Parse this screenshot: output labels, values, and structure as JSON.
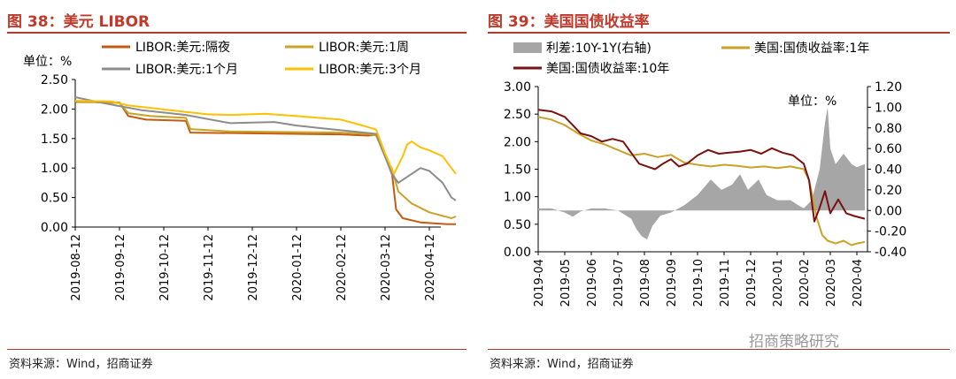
{
  "panels": [
    {
      "title": "图 38：美元 LIBOR",
      "source": "资料来源：Wind，招商证券"
    },
    {
      "title": "图 39：美国国债收益率",
      "source": "资料来源：Wind，招商证券"
    }
  ],
  "watermark": "招商策略研究",
  "chart_data": [
    {
      "type": "line",
      "unit_label": "单位：%",
      "ylim": [
        0,
        2.5
      ],
      "yticks": [
        "0.00",
        "0.50",
        "1.00",
        "1.50",
        "2.00",
        "2.50"
      ],
      "xticks": [
        "2019-08-12",
        "2019-09-12",
        "2019-10-12",
        "2019-11-12",
        "2019-12-12",
        "2020-01-12",
        "2020-02-12",
        "2020-03-12",
        "2020-04-12"
      ],
      "legend": "top",
      "series": [
        {
          "name": "LIBOR:美元:隔夜",
          "color": "#c55a11",
          "points": [
            [
              0,
              2.12
            ],
            [
              1,
              2.11
            ],
            [
              1.2,
              1.88
            ],
            [
              1.6,
              1.82
            ],
            [
              2.5,
              1.8
            ],
            [
              2.6,
              1.6
            ],
            [
              6,
              1.57
            ],
            [
              6.6,
              1.55
            ],
            [
              6.8,
              1.56
            ],
            [
              7.05,
              1.1
            ],
            [
              7.15,
              0.95
            ],
            [
              7.25,
              0.3
            ],
            [
              7.4,
              0.15
            ],
            [
              7.8,
              0.08
            ],
            [
              8.4,
              0.05
            ],
            [
              8.6,
              0.05
            ]
          ]
        },
        {
          "name": "LIBOR:美元:1周",
          "color": "#c9a227",
          "points": [
            [
              0,
              2.13
            ],
            [
              1,
              2.1
            ],
            [
              1.2,
              1.93
            ],
            [
              1.7,
              1.88
            ],
            [
              2.5,
              1.85
            ],
            [
              2.6,
              1.66
            ],
            [
              3.5,
              1.62
            ],
            [
              6,
              1.6
            ],
            [
              6.6,
              1.58
            ],
            [
              6.8,
              1.55
            ],
            [
              7.0,
              1.2
            ],
            [
              7.15,
              1.0
            ],
            [
              7.3,
              0.6
            ],
            [
              7.6,
              0.4
            ],
            [
              8.0,
              0.25
            ],
            [
              8.5,
              0.15
            ],
            [
              8.6,
              0.18
            ]
          ]
        },
        {
          "name": "LIBOR:美元:1个月",
          "color": "#8c8c8c",
          "points": [
            [
              0,
              2.2
            ],
            [
              0.5,
              2.12
            ],
            [
              1,
              2.05
            ],
            [
              1.5,
              1.98
            ],
            [
              2.5,
              1.9
            ],
            [
              3.5,
              1.76
            ],
            [
              4.5,
              1.78
            ],
            [
              5,
              1.72
            ],
            [
              6,
              1.64
            ],
            [
              6.8,
              1.58
            ],
            [
              7.0,
              1.2
            ],
            [
              7.15,
              0.9
            ],
            [
              7.3,
              0.75
            ],
            [
              7.5,
              0.85
            ],
            [
              7.8,
              1.0
            ],
            [
              8.0,
              0.95
            ],
            [
              8.3,
              0.75
            ],
            [
              8.5,
              0.5
            ],
            [
              8.6,
              0.45
            ]
          ]
        },
        {
          "name": "LIBOR:美元:3个月",
          "color": "#ffc000",
          "points": [
            [
              0,
              2.14
            ],
            [
              0.8,
              2.13
            ],
            [
              1.2,
              2.06
            ],
            [
              1.7,
              2.02
            ],
            [
              2.5,
              1.95
            ],
            [
              3,
              1.91
            ],
            [
              3.5,
              1.9
            ],
            [
              4.3,
              1.92
            ],
            [
              5,
              1.88
            ],
            [
              5.5,
              1.85
            ],
            [
              6,
              1.82
            ],
            [
              6.5,
              1.72
            ],
            [
              6.8,
              1.65
            ],
            [
              7.0,
              1.25
            ],
            [
              7.2,
              0.9
            ],
            [
              7.4,
              1.2
            ],
            [
              7.5,
              1.4
            ],
            [
              7.6,
              1.45
            ],
            [
              7.8,
              1.35
            ],
            [
              8.0,
              1.3
            ],
            [
              8.3,
              1.2
            ],
            [
              8.5,
              1.0
            ],
            [
              8.6,
              0.9
            ]
          ]
        }
      ]
    },
    {
      "type": "line",
      "unit_label": "单位：%",
      "ylim": [
        0,
        3
      ],
      "yticks": [
        "0.00",
        "0.50",
        "1.00",
        "1.50",
        "2.00",
        "2.50",
        "3.00"
      ],
      "y2lim": [
        -0.4,
        1.2
      ],
      "y2ticks": [
        "-0.40",
        "-0.20",
        "0.00",
        "0.20",
        "0.40",
        "0.60",
        "0.80",
        "1.00",
        "1.20"
      ],
      "xticks": [
        "2019-04",
        "2019-05",
        "2019-06",
        "2019-07",
        "2019-08",
        "2019-09",
        "2019-10",
        "2019-11",
        "2019-12",
        "2020-01",
        "2020-02",
        "2020-03",
        "2020-04"
      ],
      "legend": "top",
      "series": [
        {
          "name": "利差:10Y-1Y(右轴)",
          "type": "area",
          "axis": "right",
          "color": "#a6a6a6",
          "points": [
            [
              0,
              0.02
            ],
            [
              0.5,
              0.02
            ],
            [
              1.0,
              -0.02
            ],
            [
              1.3,
              -0.06
            ],
            [
              1.6,
              -0.01
            ],
            [
              2,
              0.02
            ],
            [
              2.5,
              0.02
            ],
            [
              3.0,
              0.0
            ],
            [
              3.5,
              -0.08
            ],
            [
              3.7,
              -0.18
            ],
            [
              3.9,
              -0.25
            ],
            [
              4.1,
              -0.28
            ],
            [
              4.3,
              -0.15
            ],
            [
              4.6,
              -0.05
            ],
            [
              5,
              -0.02
            ],
            [
              5.5,
              0.05
            ],
            [
              6.0,
              0.15
            ],
            [
              6.5,
              0.3
            ],
            [
              6.9,
              0.2
            ],
            [
              7.3,
              0.25
            ],
            [
              7.6,
              0.35
            ],
            [
              7.9,
              0.2
            ],
            [
              8.3,
              0.3
            ],
            [
              8.6,
              0.15
            ],
            [
              9.0,
              0.1
            ],
            [
              9.5,
              0.1
            ],
            [
              9.8,
              0.05
            ],
            [
              10.0,
              0.02
            ],
            [
              10.3,
              0.1
            ],
            [
              10.6,
              0.4
            ],
            [
              10.8,
              0.85
            ],
            [
              10.9,
              1.0
            ],
            [
              11.0,
              0.6
            ],
            [
              11.2,
              0.45
            ],
            [
              11.5,
              0.55
            ],
            [
              11.8,
              0.45
            ],
            [
              12.0,
              0.42
            ],
            [
              12.3,
              0.45
            ]
          ]
        },
        {
          "name": "美国:国债收益率:1年",
          "axis": "left",
          "color": "#c9a227",
          "points": [
            [
              0,
              2.45
            ],
            [
              0.5,
              2.4
            ],
            [
              1.0,
              2.3
            ],
            [
              1.5,
              2.15
            ],
            [
              2,
              2.02
            ],
            [
              2.5,
              1.95
            ],
            [
              3,
              1.85
            ],
            [
              3.5,
              1.75
            ],
            [
              4,
              1.78
            ],
            [
              4.5,
              1.72
            ],
            [
              5,
              1.76
            ],
            [
              5.5,
              1.62
            ],
            [
              6,
              1.58
            ],
            [
              6.5,
              1.55
            ],
            [
              7,
              1.58
            ],
            [
              7.5,
              1.56
            ],
            [
              8,
              1.53
            ],
            [
              8.5,
              1.55
            ],
            [
              9,
              1.52
            ],
            [
              9.5,
              1.55
            ],
            [
              10.0,
              1.5
            ],
            [
              10.2,
              1.3
            ],
            [
              10.5,
              0.6
            ],
            [
              10.7,
              0.3
            ],
            [
              10.9,
              0.2
            ],
            [
              11.2,
              0.15
            ],
            [
              11.5,
              0.2
            ],
            [
              11.8,
              0.12
            ],
            [
              12.0,
              0.15
            ],
            [
              12.3,
              0.18
            ]
          ]
        },
        {
          "name": "美国:国债收益率:10年",
          "axis": "left",
          "color": "#7b1010",
          "points": [
            [
              0,
              2.58
            ],
            [
              0.5,
              2.55
            ],
            [
              1.0,
              2.45
            ],
            [
              1.3,
              2.3
            ],
            [
              1.6,
              2.15
            ],
            [
              2,
              2.1
            ],
            [
              2.4,
              2.0
            ],
            [
              2.8,
              2.05
            ],
            [
              3.2,
              2.0
            ],
            [
              3.5,
              1.8
            ],
            [
              3.8,
              1.6
            ],
            [
              4.1,
              1.55
            ],
            [
              4.4,
              1.5
            ],
            [
              4.7,
              1.6
            ],
            [
              5,
              1.68
            ],
            [
              5.3,
              1.55
            ],
            [
              5.6,
              1.6
            ],
            [
              6,
              1.75
            ],
            [
              6.4,
              1.85
            ],
            [
              6.8,
              1.78
            ],
            [
              7.2,
              1.8
            ],
            [
              7.6,
              1.82
            ],
            [
              8,
              1.85
            ],
            [
              8.4,
              1.78
            ],
            [
              8.8,
              1.88
            ],
            [
              9.2,
              1.8
            ],
            [
              9.6,
              1.75
            ],
            [
              10,
              1.6
            ],
            [
              10.2,
              1.3
            ],
            [
              10.4,
              0.55
            ],
            [
              10.6,
              0.8
            ],
            [
              10.8,
              1.1
            ],
            [
              11.0,
              0.7
            ],
            [
              11.3,
              0.95
            ],
            [
              11.6,
              0.7
            ],
            [
              11.9,
              0.65
            ],
            [
              12.3,
              0.6
            ]
          ]
        }
      ]
    }
  ]
}
